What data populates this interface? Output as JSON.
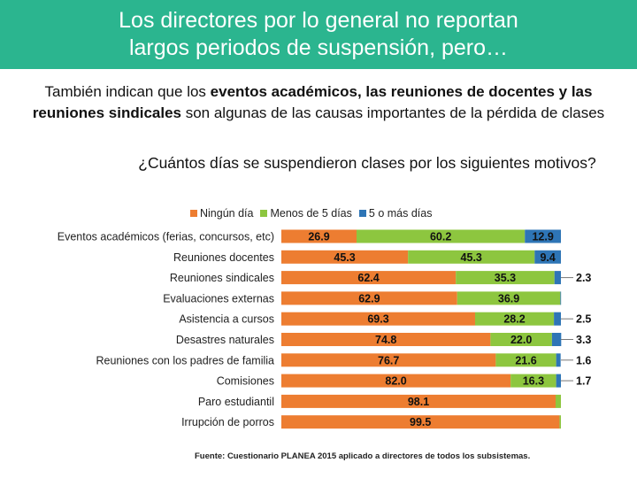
{
  "header": {
    "title_line1": "Los directores por lo general no reportan",
    "title_line2": "largos periodos de suspensión, pero…"
  },
  "subtitle": {
    "part1": "También indican que los ",
    "bold1": "eventos académicos, las reuniones de docentes y las reuniones sindicales",
    "part2": " son algunas de las causas importantes de la pérdida de clases"
  },
  "colors": {
    "header_bg": "#2bb58f",
    "ningun_dia": "#ed7d31",
    "menos_5": "#8dc63f",
    "cinco_mas": "#2e75b6"
  },
  "chart_data": {
    "type": "bar",
    "orientation": "horizontal",
    "stacked": "100%",
    "title": "¿Cuántos días se suspendieron clases por los siguientes motivos?",
    "legend_position": "top",
    "categories": [
      "Eventos académicos (ferias, concursos, etc)",
      "Reuniones docentes",
      "Reuniones sindicales",
      "Evaluaciones externas",
      "Asistencia a cursos",
      "Desastres naturales",
      "Reuniones con los padres de familia",
      "Comisiones",
      "Paro estudiantil",
      "Irrupción de porros"
    ],
    "series": [
      {
        "name": "Ningún día",
        "values": [
          26.9,
          45.3,
          62.4,
          62.9,
          69.3,
          74.8,
          76.7,
          82.0,
          98.1,
          99.5
        ],
        "labels": [
          "26.9",
          "45.3",
          "62.4",
          "62.9",
          "69.3",
          "74.8",
          "76.7",
          "82.0",
          "98.1",
          "99.5"
        ]
      },
      {
        "name": "Menos de 5 días",
        "values": [
          60.2,
          45.3,
          35.3,
          36.9,
          28.2,
          22.0,
          21.6,
          16.3,
          1.9,
          0.5
        ],
        "labels": [
          "60.2",
          "45.3",
          "35.3",
          "36.9",
          "28.2",
          "22.0",
          "21.6",
          "16.3",
          "",
          ""
        ]
      },
      {
        "name": "5 o más días",
        "values": [
          12.9,
          9.4,
          2.3,
          0.2,
          2.5,
          3.3,
          1.6,
          1.7,
          0,
          0
        ],
        "labels": [
          "12.9",
          "9.4",
          "2.3",
          "",
          "2.5",
          "3.3",
          "1.6",
          "1.7",
          "",
          ""
        ]
      }
    ],
    "xlim": [
      0,
      100
    ],
    "grid": false
  },
  "source": "Fuente: Cuestionario PLANEA 2015 aplicado a directores de todos los subsistemas."
}
